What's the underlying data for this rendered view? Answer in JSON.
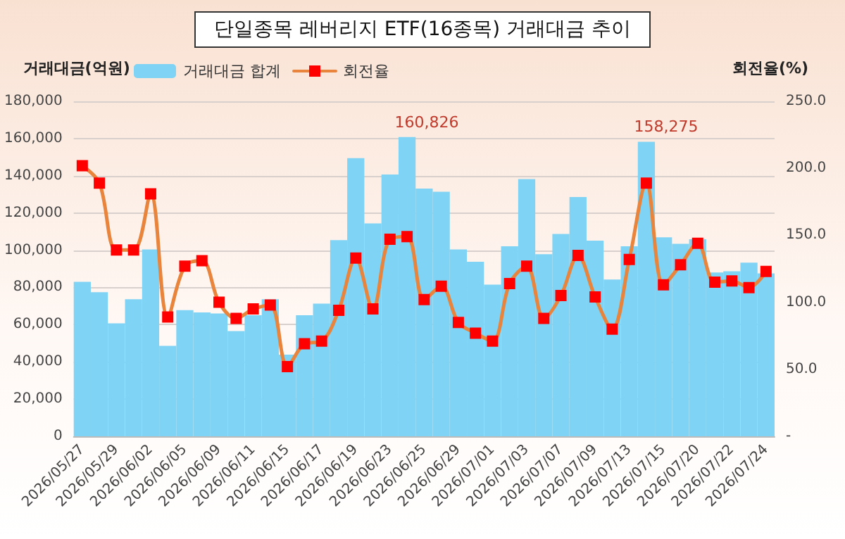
{
  "chart_data": {
    "type": "bar",
    "title": "단일종목 레버리지 ETF(16종목) 거래대금 추이",
    "ylabel": "거래대금(억원)",
    "y2label": "회전율(%)",
    "categories": [
      "2026/05/27",
      null,
      "2026/05/29",
      null,
      "2026/06/02",
      null,
      "2026/06/05",
      null,
      "2026/06/09",
      null,
      "2026/06/11",
      null,
      "2026/06/15",
      null,
      "2026/06/17",
      null,
      "2026/06/19",
      null,
      "2026/06/23",
      null,
      "2026/06/25",
      null,
      "2026/06/29",
      null,
      "2026/07/01",
      null,
      "2026/07/03",
      null,
      "2026/07/07",
      null,
      "2026/07/09",
      null,
      "2026/07/13",
      null,
      "2026/07/15",
      null,
      "2026/07/20",
      null,
      "2026/07/22",
      null,
      "2026/07/24"
    ],
    "series": [
      {
        "name": "거래대금 합계",
        "color": "#7fd3f4",
        "values": [
          83000,
          77400,
          60700,
          73600,
          100400,
          48600,
          67800,
          66600,
          66000,
          56500,
          65000,
          73600,
          43900,
          65000,
          71300,
          105400,
          149500,
          114400,
          140700,
          160826,
          133100,
          131400,
          100400,
          93800,
          81500,
          102100,
          138200,
          97800,
          108700,
          128600,
          105100,
          84200,
          102100,
          158275,
          106900,
          103400,
          105900,
          88000,
          88700,
          93300,
          87500
        ],
        "value_labels": [
          null,
          null,
          null,
          null,
          null,
          null,
          null,
          null,
          null,
          null,
          null,
          null,
          null,
          null,
          null,
          null,
          null,
          null,
          null,
          "160,826",
          null,
          null,
          null,
          null,
          null,
          null,
          null,
          null,
          null,
          null,
          null,
          null,
          null,
          "158,275",
          null,
          null,
          null,
          null,
          null,
          null,
          null
        ]
      },
      {
        "name": "회전율",
        "type": "line",
        "axis": "y2",
        "color": "#e8843c",
        "values": [
          202,
          189,
          139,
          139,
          181,
          89,
          127,
          131,
          100,
          88,
          95,
          98,
          52,
          69,
          71,
          94,
          133,
          95,
          147,
          149,
          102,
          112,
          85,
          77,
          71,
          114,
          127,
          88,
          105,
          135,
          104,
          80,
          132,
          189,
          113,
          128,
          144,
          115,
          116,
          111,
          123
        ]
      }
    ],
    "ylim": [
      0,
      180000
    ],
    "yticks": [
      0,
      {
        "value": 20000,
        "label": "20,000"
      },
      {
        "value": 40000,
        "label": "40,000"
      },
      {
        "value": 60000,
        "label": "60,000"
      },
      {
        "value": 80000,
        "label": "80,000"
      },
      {
        "value": 100000,
        "label": "100,000"
      },
      {
        "value": 120000,
        "label": "120,000"
      },
      {
        "value": 140000,
        "label": "140,000"
      },
      {
        "value": 160000,
        "label": "160,000"
      },
      {
        "value": 180000,
        "label": "180,000"
      }
    ],
    "y2lim": [
      0,
      250
    ],
    "y2ticks": [
      {
        "value": 0,
        "label": "-"
      },
      {
        "value": 50,
        "label": "50.0"
      },
      {
        "value": 100,
        "label": "100.0"
      },
      {
        "value": 150,
        "label": "150.0"
      },
      {
        "value": 200,
        "label": "200.0"
      },
      {
        "value": 250,
        "label": "250.0"
      }
    ],
    "grid": "y",
    "legend": "top left",
    "marker": "square",
    "line_style": "solid"
  }
}
